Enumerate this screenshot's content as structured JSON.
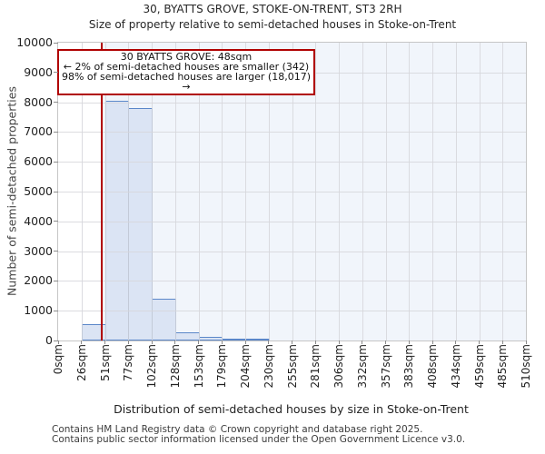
{
  "chart_data": {
    "type": "bar",
    "title": "30, BYATTS GROVE, STOKE-ON-TRENT, ST3 2RH",
    "subtitle": "Size of property relative to semi-detached houses in Stoke-on-Trent",
    "xlabel": "Distribution of semi-detached houses by size in Stoke-on-Trent",
    "ylabel": "Number of semi-detached properties",
    "annotation": {
      "line1": "30 BYATTS GROVE: 48sqm",
      "line2": "← 2% of semi-detached houses are smaller (342)",
      "line3": "98% of semi-detached houses are larger (18,017) →"
    },
    "x_tick_labels": [
      "0sqm",
      "26sqm",
      "51sqm",
      "77sqm",
      "102sqm",
      "128sqm",
      "153sqm",
      "179sqm",
      "204sqm",
      "230sqm",
      "255sqm",
      "281sqm",
      "306sqm",
      "332sqm",
      "357sqm",
      "383sqm",
      "408sqm",
      "434sqm",
      "459sqm",
      "485sqm",
      "510sqm"
    ],
    "bin_edges_sqm": [
      0,
      26,
      51,
      77,
      102,
      128,
      153,
      179,
      204,
      230,
      255,
      281,
      306,
      332,
      357,
      383,
      408,
      434,
      459,
      485,
      510
    ],
    "counts": [
      0,
      550,
      8050,
      7800,
      1400,
      290,
      110,
      40,
      15,
      0,
      0,
      0,
      0,
      0,
      0,
      0,
      0,
      0,
      0,
      0
    ],
    "xlim": [
      0,
      510
    ],
    "ylim": [
      0,
      10000
    ],
    "y_ticks": [
      0,
      1000,
      2000,
      3000,
      4000,
      5000,
      6000,
      7000,
      8000,
      9000,
      10000
    ],
    "grid": true,
    "legend": false,
    "marker_line": {
      "value_sqm": 48,
      "color": "#b00000"
    },
    "shaded_region": {
      "from_sqm": 48,
      "to_sqm": 510,
      "color": "#f1f5fb"
    },
    "stats": {
      "smaller_pct": 2,
      "smaller_count": 342,
      "larger_pct": 98,
      "larger_count": 18017
    },
    "colors": {
      "bar_fill": "#dbe4f4",
      "bar_edge": "#5b87c9",
      "grid": "#d6d6da",
      "frame": "#c6c6c6",
      "marker_red": "#b00000"
    }
  },
  "footer": {
    "line1": "Contains HM Land Registry data © Crown copyright and database right 2025.",
    "line2": "Contains public sector information licensed under the Open Government Licence v3.0."
  }
}
